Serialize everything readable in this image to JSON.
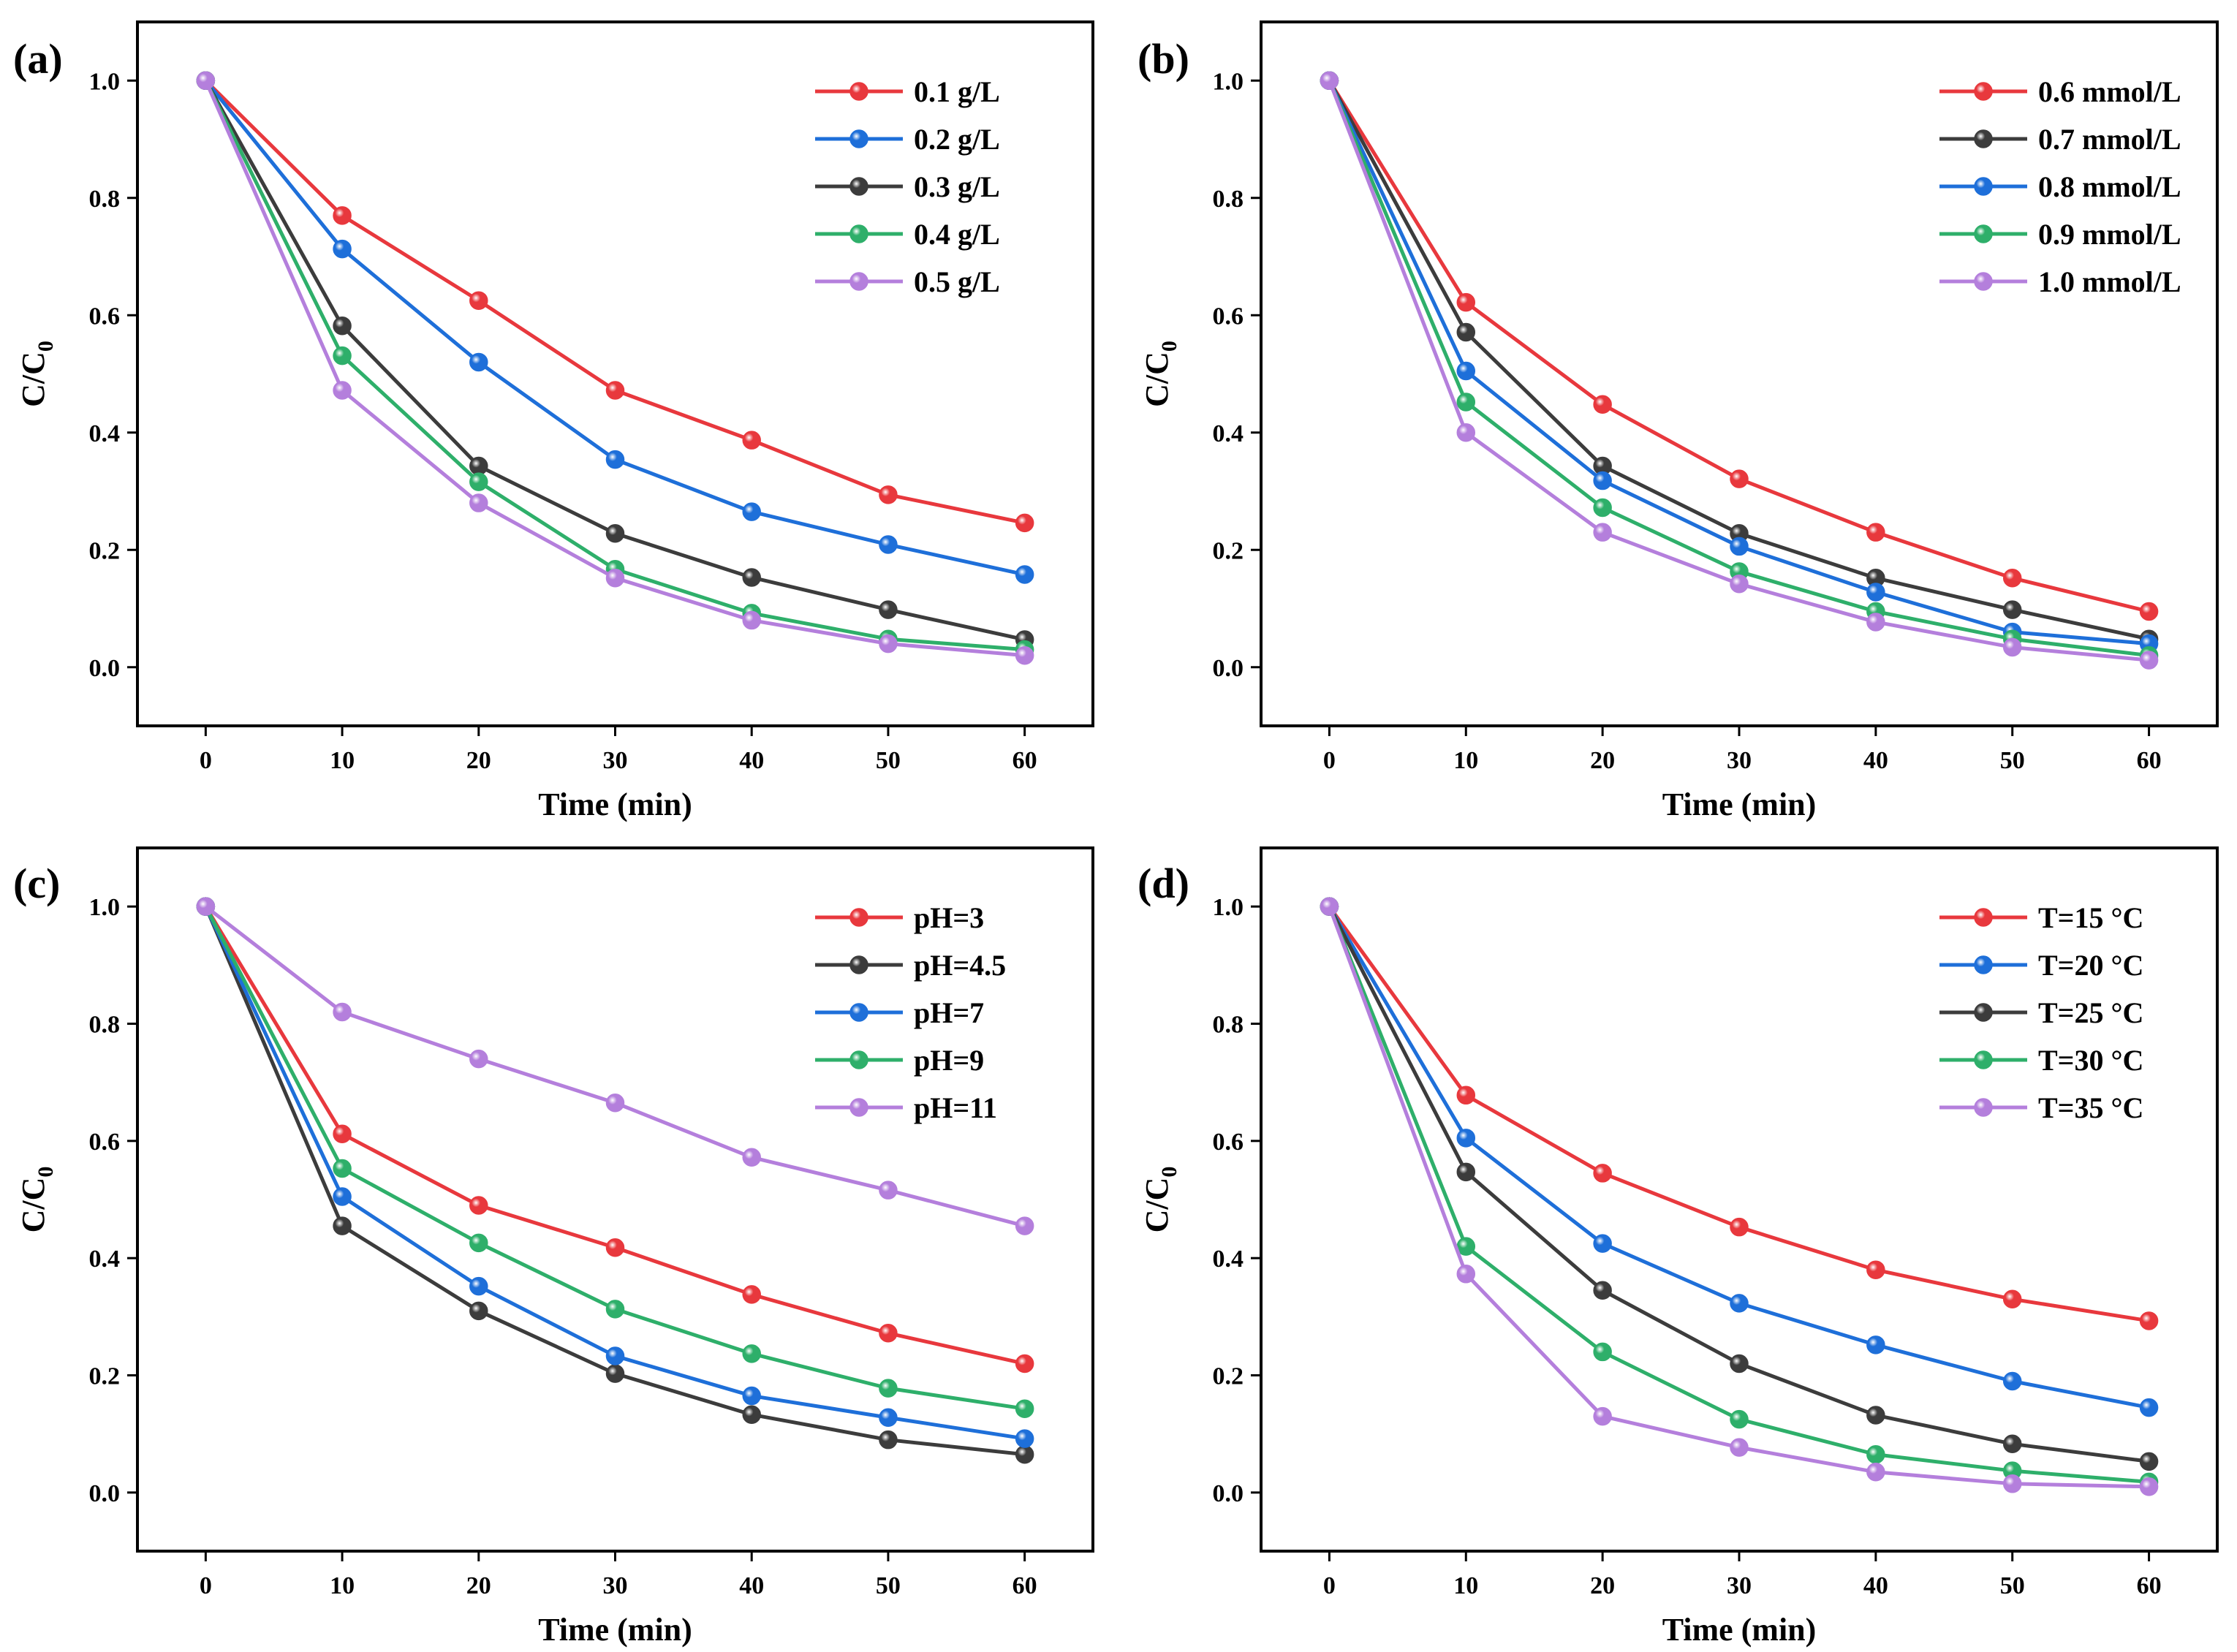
{
  "figure": {
    "title": ""
  },
  "series_colors": {
    "red": "#e8383d",
    "blue": "#1e6fd9",
    "black": "#3c3c3c",
    "green": "#2eaf6a",
    "purple": "#b47fdc"
  },
  "chart_data": [
    {
      "panel": "(a)",
      "type": "line",
      "xlabel": "Time (min)",
      "ylabel_main": "C/C",
      "ylabel_sub": "0",
      "x": [
        0,
        10,
        20,
        30,
        40,
        50,
        60
      ],
      "xticks": [
        "0",
        "10",
        "20",
        "30",
        "40",
        "50",
        "60"
      ],
      "yticks": [
        "0.0",
        "0.2",
        "0.4",
        "0.6",
        "0.8",
        "1.0"
      ],
      "xlim": [
        -5,
        65
      ],
      "ylim": [
        -0.1,
        1.1
      ],
      "legend_position": "top-right",
      "series": [
        {
          "name": "0.1 g/L",
          "color": "red",
          "values": [
            1.0,
            0.77,
            0.625,
            0.472,
            0.387,
            0.294,
            0.246
          ]
        },
        {
          "name": "0.2 g/L",
          "color": "blue",
          "values": [
            1.0,
            0.713,
            0.52,
            0.354,
            0.265,
            0.209,
            0.158
          ]
        },
        {
          "name": "0.3 g/L",
          "color": "black",
          "values": [
            1.0,
            0.582,
            0.343,
            0.228,
            0.153,
            0.098,
            0.047
          ]
        },
        {
          "name": "0.4 g/L",
          "color": "green",
          "values": [
            1.0,
            0.531,
            0.316,
            0.167,
            0.092,
            0.048,
            0.03
          ]
        },
        {
          "name": "0.5 g/L",
          "color": "purple",
          "values": [
            1.0,
            0.472,
            0.28,
            0.152,
            0.08,
            0.04,
            0.02
          ]
        }
      ]
    },
    {
      "panel": "(b)",
      "type": "line",
      "xlabel": "Time (min)",
      "ylabel_main": "C/C",
      "ylabel_sub": "0",
      "x": [
        0,
        10,
        20,
        30,
        40,
        50,
        60
      ],
      "xticks": [
        "0",
        "10",
        "20",
        "30",
        "40",
        "50",
        "60"
      ],
      "yticks": [
        "0.0",
        "0.2",
        "0.4",
        "0.6",
        "0.8",
        "1.0"
      ],
      "xlim": [
        -5,
        65
      ],
      "ylim": [
        -0.1,
        1.1
      ],
      "legend_position": "top-right",
      "series": [
        {
          "name": "0.6 mmol/L",
          "color": "red",
          "values": [
            1.0,
            0.622,
            0.448,
            0.321,
            0.23,
            0.152,
            0.095
          ]
        },
        {
          "name": "0.7 mmol/L",
          "color": "black",
          "values": [
            1.0,
            0.571,
            0.343,
            0.228,
            0.152,
            0.098,
            0.048
          ]
        },
        {
          "name": "0.8 mmol/L",
          "color": "blue",
          "values": [
            1.0,
            0.505,
            0.318,
            0.206,
            0.128,
            0.06,
            0.04
          ]
        },
        {
          "name": "0.9 mmol/L",
          "color": "green",
          "values": [
            1.0,
            0.452,
            0.272,
            0.163,
            0.095,
            0.048,
            0.02
          ]
        },
        {
          "name": "1.0 mmol/L",
          "color": "purple",
          "values": [
            1.0,
            0.4,
            0.23,
            0.142,
            0.077,
            0.034,
            0.012
          ]
        }
      ]
    },
    {
      "panel": "(c)",
      "type": "line",
      "xlabel": "Time (min)",
      "ylabel_main": "C/C",
      "ylabel_sub": "0",
      "x": [
        0,
        10,
        20,
        30,
        40,
        50,
        60
      ],
      "xticks": [
        "0",
        "10",
        "20",
        "30",
        "40",
        "50",
        "60"
      ],
      "yticks": [
        "0.0",
        "0.2",
        "0.4",
        "0.6",
        "0.8",
        "1.0"
      ],
      "xlim": [
        -5,
        65
      ],
      "ylim": [
        -0.1,
        1.1
      ],
      "legend_position": "top-right",
      "series": [
        {
          "name": "pH=3",
          "color": "red",
          "values": [
            1.0,
            0.612,
            0.49,
            0.418,
            0.338,
            0.272,
            0.22
          ]
        },
        {
          "name": "pH=4.5",
          "color": "black",
          "values": [
            1.0,
            0.455,
            0.31,
            0.203,
            0.133,
            0.09,
            0.065
          ]
        },
        {
          "name": "pH=7",
          "color": "blue",
          "values": [
            1.0,
            0.505,
            0.352,
            0.233,
            0.165,
            0.128,
            0.092
          ]
        },
        {
          "name": "pH=9",
          "color": "green",
          "values": [
            1.0,
            0.553,
            0.426,
            0.313,
            0.237,
            0.178,
            0.143
          ]
        },
        {
          "name": "pH=11",
          "color": "purple",
          "values": [
            1.0,
            0.82,
            0.74,
            0.665,
            0.572,
            0.516,
            0.455
          ]
        }
      ]
    },
    {
      "panel": "(d)",
      "type": "line",
      "xlabel": "Time (min)",
      "ylabel_main": "C/C",
      "ylabel_sub": "0",
      "x": [
        0,
        10,
        20,
        30,
        40,
        50,
        60
      ],
      "xticks": [
        "0",
        "10",
        "20",
        "30",
        "40",
        "50",
        "60"
      ],
      "yticks": [
        "0.0",
        "0.2",
        "0.4",
        "0.6",
        "0.8",
        "1.0"
      ],
      "xlim": [
        -5,
        65
      ],
      "ylim": [
        -0.1,
        1.1
      ],
      "legend_position": "top-right",
      "series": [
        {
          "name": "T=15 °C",
          "color": "red",
          "values": [
            1.0,
            0.678,
            0.545,
            0.453,
            0.38,
            0.33,
            0.293
          ]
        },
        {
          "name": "T=20 °C",
          "color": "blue",
          "values": [
            1.0,
            0.605,
            0.425,
            0.323,
            0.252,
            0.19,
            0.145
          ]
        },
        {
          "name": "T=25 °C",
          "color": "black",
          "values": [
            1.0,
            0.547,
            0.345,
            0.22,
            0.132,
            0.083,
            0.053
          ]
        },
        {
          "name": "T=30 °C",
          "color": "green",
          "values": [
            1.0,
            0.42,
            0.24,
            0.125,
            0.065,
            0.037,
            0.018
          ]
        },
        {
          "name": "T=35 °C",
          "color": "purple",
          "values": [
            1.0,
            0.373,
            0.13,
            0.077,
            0.035,
            0.015,
            0.01
          ]
        }
      ]
    }
  ]
}
